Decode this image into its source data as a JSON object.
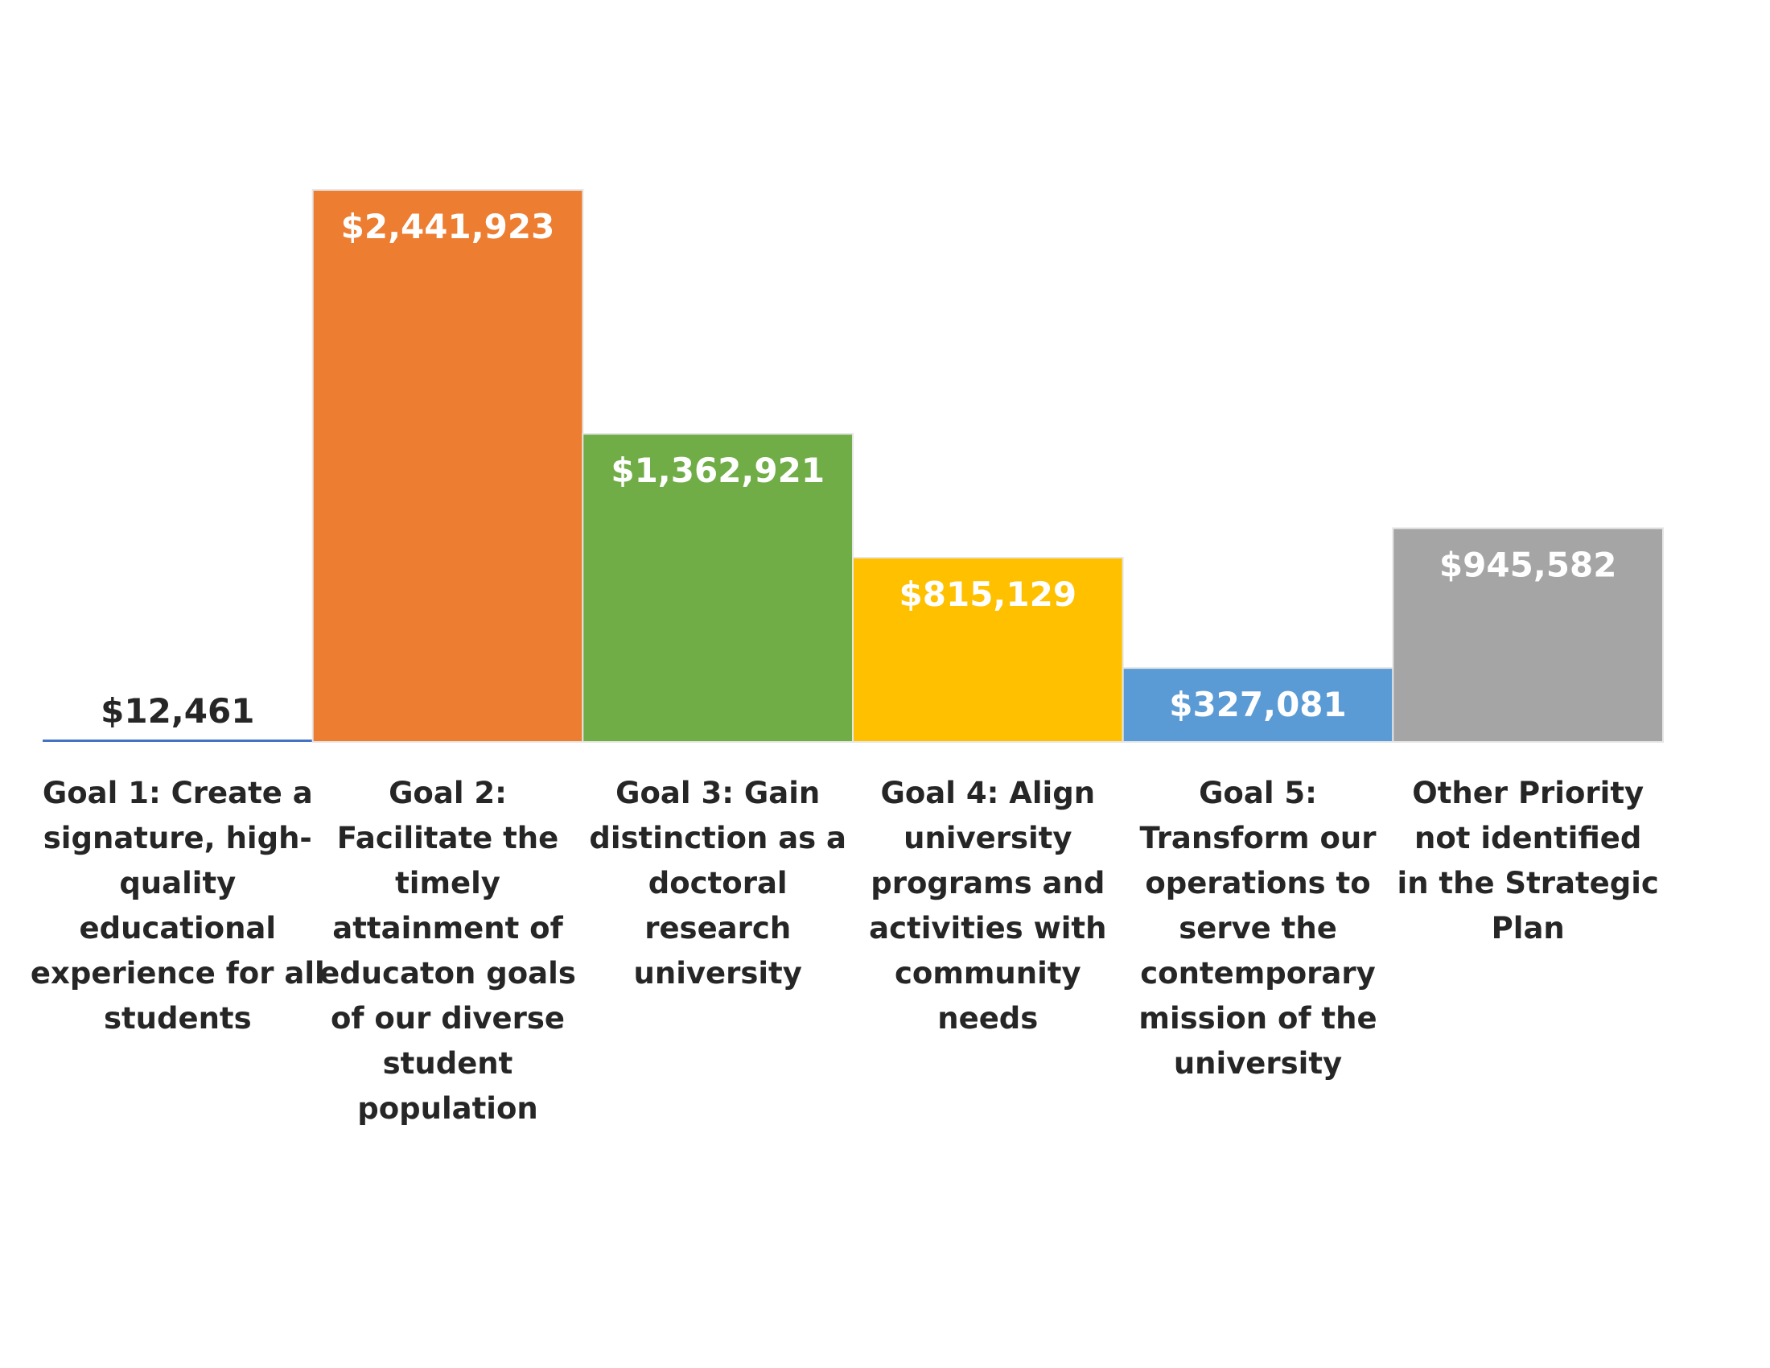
{
  "chart_data": {
    "type": "bar",
    "title": "",
    "xlabel": "",
    "ylabel": "",
    "ylim": [
      0,
      2441923
    ],
    "grid": false,
    "legend": "none",
    "categories": [
      "Goal 1: Create a signature, high-quality educational experience for all students",
      "Goal 2: Facilitate the timely attainment of educaton goals of our diverse student population",
      "Goal 3: Gain distinction as a doctoral research university",
      "Goal 4: Align university programs and activities with community needs",
      "Goal 5: Transform our operations to serve the contemporary mission of the university",
      "Other Priority not identified in the Strategic Plan"
    ],
    "category_lines": [
      [
        "Goal 1: Create a",
        "signature, high-",
        "quality",
        "educational",
        "experience for all",
        "students"
      ],
      [
        "Goal 2:",
        "Facilitate the",
        "timely",
        "attainment of",
        "educaton goals",
        "of our diverse",
        "student",
        "population"
      ],
      [
        "Goal 3: Gain",
        "distinction as a",
        "doctoral",
        "research",
        "university"
      ],
      [
        "Goal 4: Align",
        "university",
        "programs and",
        "activities with",
        "community",
        "needs"
      ],
      [
        "Goal 5:",
        "Transform our",
        "operations to",
        "serve the",
        "contemporary",
        "mission of the",
        "university"
      ],
      [
        "Other Priority",
        "not identified",
        "in the Strategic",
        "Plan"
      ]
    ],
    "values": [
      12461,
      2441923,
      1362921,
      815129,
      327081,
      945582
    ],
    "value_labels": [
      "$12,461",
      "$2,441,923",
      "$1,362,921",
      "$815,129",
      "$327,081",
      "$945,582"
    ],
    "colors": [
      "#4472c4",
      "#ed7d31",
      "#70ad47",
      "#ffc000",
      "#5b9bd5",
      "#a5a5a5"
    ],
    "value_label_colors": [
      "#262626",
      "#ffffff",
      "#ffffff",
      "#ffffff",
      "#ffffff",
      "#ffffff"
    ]
  }
}
